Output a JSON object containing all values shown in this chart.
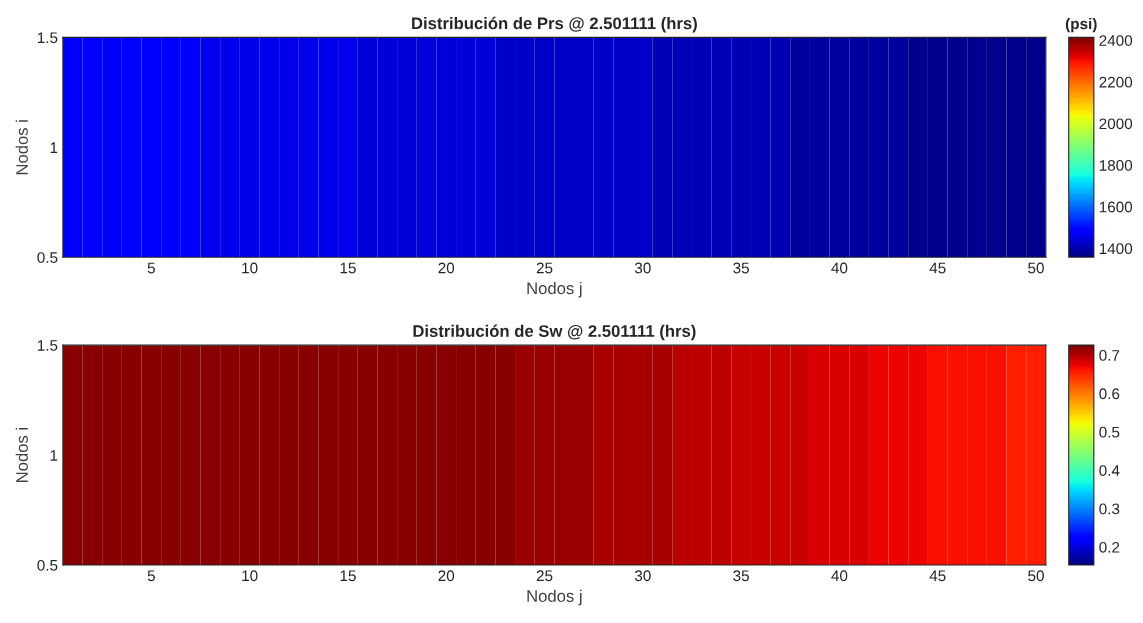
{
  "chart_data": [
    {
      "type": "heatmap",
      "title": "Distribución de Prs @ 2.501111 (hrs)",
      "xlabel": "Nodos j",
      "ylabel": "Nodos i",
      "clabel": "(psi)",
      "x": [
        1,
        2,
        3,
        4,
        5,
        6,
        7,
        8,
        9,
        10,
        11,
        12,
        13,
        14,
        15,
        16,
        17,
        18,
        19,
        20,
        21,
        22,
        23,
        24,
        25,
        26,
        27,
        28,
        29,
        30,
        31,
        32,
        33,
        34,
        35,
        36,
        37,
        38,
        39,
        40,
        41,
        42,
        43,
        44,
        45,
        46,
        47,
        48,
        49,
        50
      ],
      "cells": [
        [
          1475,
          1475,
          1475,
          1475,
          1475,
          1475,
          1475,
          1458,
          1458,
          1458,
          1458,
          1458,
          1458,
          1458,
          1458,
          1441,
          1441,
          1441,
          1441,
          1441,
          1441,
          1441,
          1424,
          1424,
          1424,
          1424,
          1424,
          1424,
          1424,
          1424,
          1407,
          1407,
          1407,
          1407,
          1407,
          1407,
          1407,
          1390,
          1390,
          1390,
          1390,
          1390,
          1390,
          1373,
          1373,
          1373,
          1373,
          1373,
          1373,
          1373
        ]
      ],
      "xlim": [
        0.5,
        50.5
      ],
      "xticks": [
        5,
        10,
        15,
        20,
        25,
        30,
        35,
        40,
        45,
        50
      ],
      "ylim": [
        0.5,
        1.5
      ],
      "yticks": [
        0.5,
        1,
        1.5
      ],
      "clim": [
        1357,
        2414
      ],
      "cticks": [
        1400,
        1600,
        1800,
        2000,
        2200,
        2400
      ]
    },
    {
      "type": "heatmap",
      "title": "Distribución de Sw @ 2.501111 (hrs)",
      "xlabel": "Nodos j",
      "ylabel": "Nodos i",
      "x": [
        1,
        2,
        3,
        4,
        5,
        6,
        7,
        8,
        9,
        10,
        11,
        12,
        13,
        14,
        15,
        16,
        17,
        18,
        19,
        20,
        21,
        22,
        23,
        24,
        25,
        26,
        27,
        28,
        29,
        30,
        31,
        32,
        33,
        34,
        35,
        36,
        37,
        38,
        39,
        40,
        41,
        42,
        43,
        44,
        45,
        46,
        47,
        48,
        49,
        50
      ],
      "cells": [
        [
          0.72,
          0.72,
          0.72,
          0.72,
          0.72,
          0.72,
          0.72,
          0.72,
          0.72,
          0.72,
          0.72,
          0.72,
          0.72,
          0.72,
          0.72,
          0.72,
          0.72,
          0.72,
          0.72,
          0.72,
          0.72,
          0.72,
          0.72,
          0.712,
          0.712,
          0.712,
          0.712,
          0.704,
          0.704,
          0.704,
          0.704,
          0.696,
          0.696,
          0.696,
          0.688,
          0.688,
          0.688,
          0.688,
          0.68,
          0.68,
          0.68,
          0.672,
          0.672,
          0.672,
          0.664,
          0.664,
          0.664,
          0.664,
          0.656,
          0.656
        ]
      ],
      "xlim": [
        0.5,
        50.5
      ],
      "xticks": [
        5,
        10,
        15,
        20,
        25,
        30,
        35,
        40,
        45,
        50
      ],
      "ylim": [
        0.5,
        1.5
      ],
      "yticks": [
        0.5,
        1,
        1.5
      ],
      "clim": [
        0.153,
        0.726
      ],
      "cticks": [
        0.2,
        0.3,
        0.4,
        0.5,
        0.6,
        0.7
      ]
    }
  ]
}
